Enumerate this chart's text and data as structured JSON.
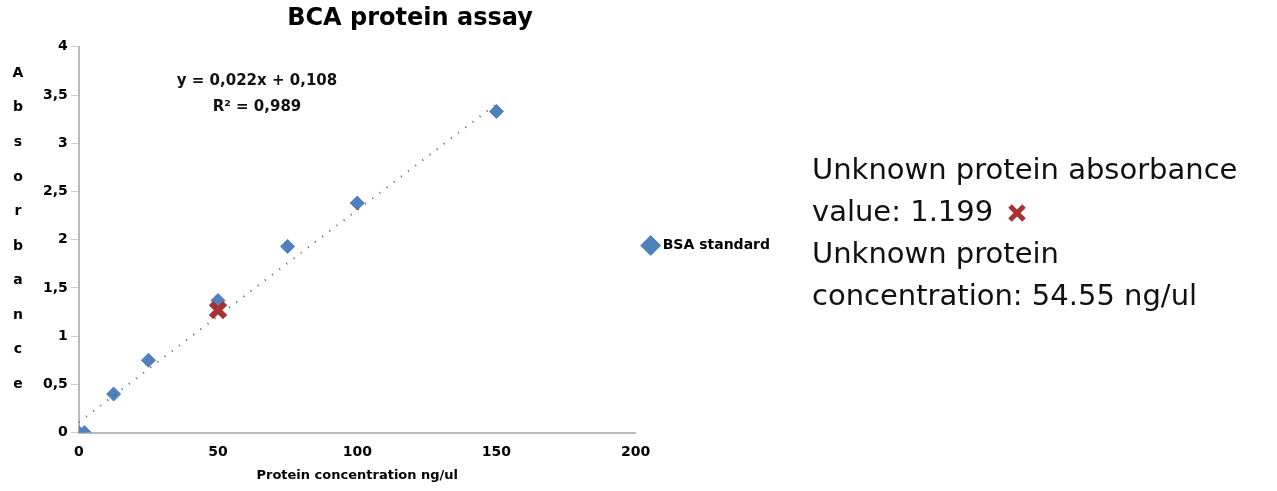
{
  "chart_data": {
    "type": "scatter",
    "title": "BCA protein assay",
    "xlabel": "Protein concentration ng/ul",
    "ylabel": "Absorbance",
    "xlim": [
      0,
      200
    ],
    "xticks": [
      0,
      50,
      100,
      150,
      200
    ],
    "ylim": [
      0,
      4
    ],
    "yticks": [
      0,
      {
        "value": 0.5,
        "label": "0,5"
      },
      1,
      {
        "value": 1.5,
        "label": "1,5"
      },
      2,
      {
        "value": 2.5,
        "label": "2,5"
      },
      3,
      {
        "value": 3.5,
        "label": "3,5"
      },
      4
    ],
    "grid": false,
    "legend": "right",
    "marker": "diamond",
    "series": [
      {
        "name": "BSA standard",
        "color": "#4f81bd",
        "x": [
          0,
          2,
          12.5,
          25,
          50,
          75,
          100,
          150
        ],
        "values": [
          0,
          0,
          0.4,
          0.75,
          1.37,
          1.93,
          2.38,
          3.33
        ]
      },
      {
        "type": "line",
        "color": "#595959",
        "line_style": "dotted",
        "marker": "none",
        "x": [
          0,
          150
        ],
        "values": [
          0.108,
          3.408
        ]
      },
      {
        "color": "#a83232",
        "marker": "cross",
        "x": [
          50
        ],
        "values": [
          1.27
        ]
      }
    ],
    "annotations": [
      "y = 0,022x + 0,108",
      "R² = 0,989",
      "Unknown protein absorbance value: 1.199",
      "Unknown protein concentration: 54.55 ng/ul"
    ]
  }
}
